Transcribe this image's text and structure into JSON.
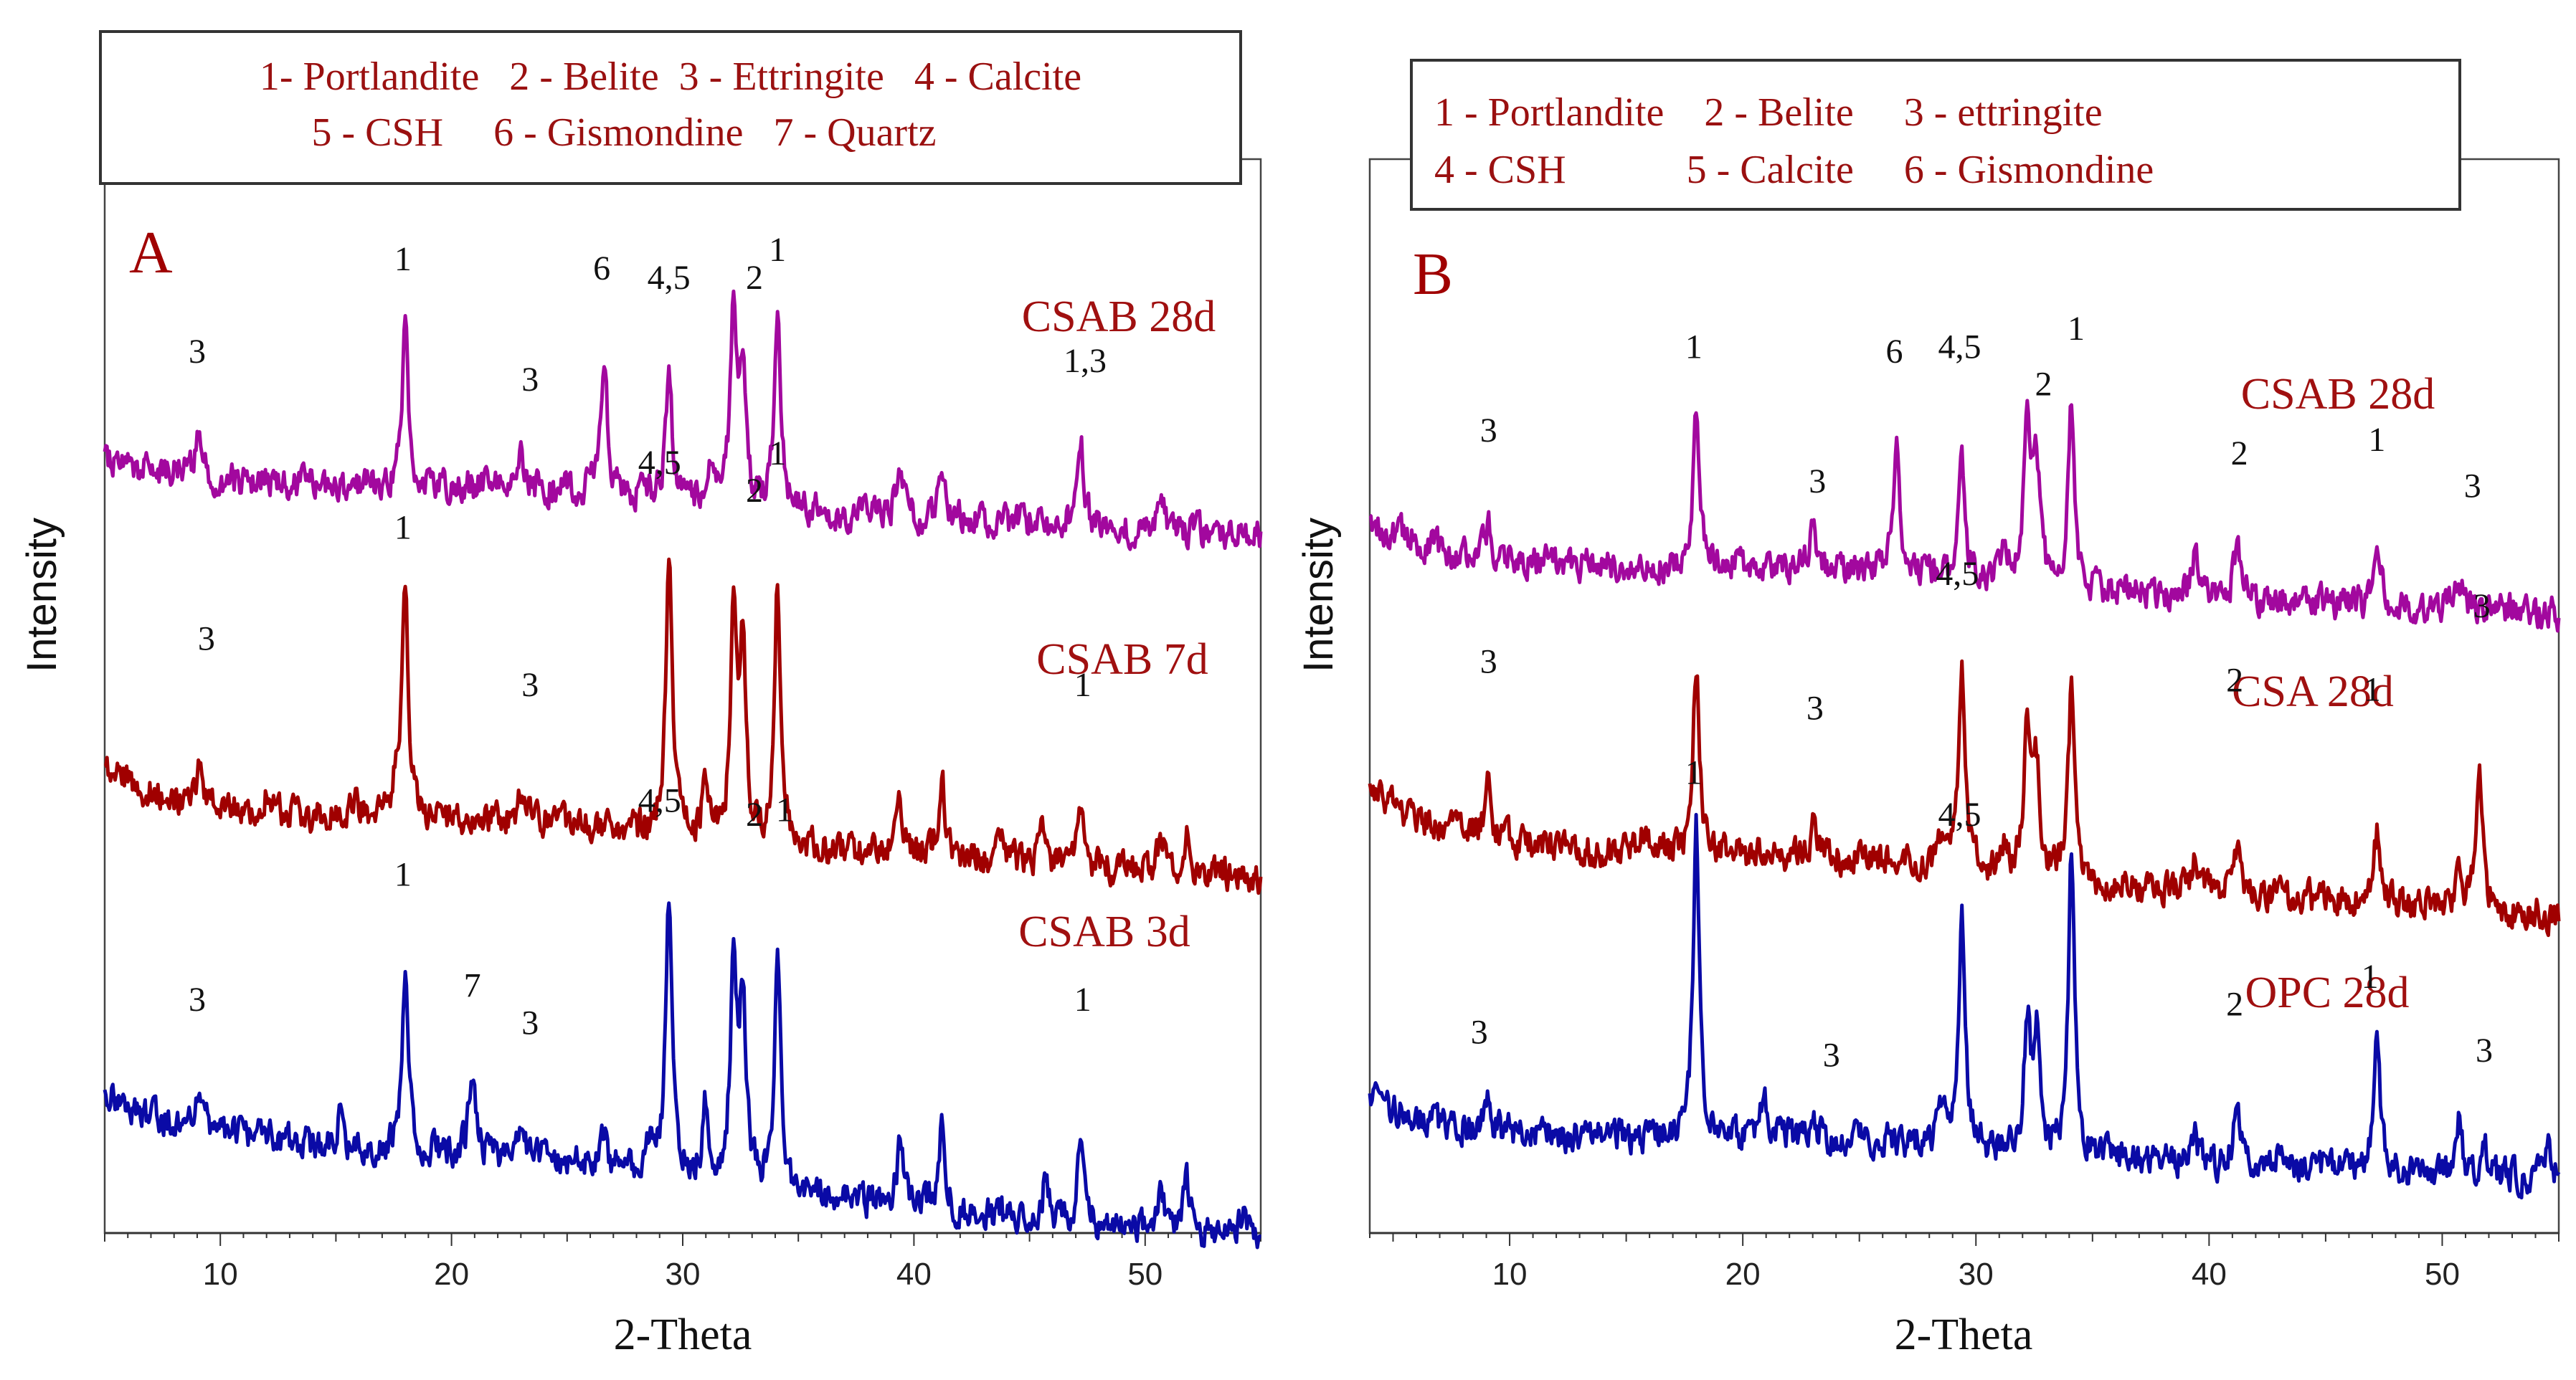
{
  "chart_data": [
    {
      "type": "line",
      "panel_label": "A",
      "title": "",
      "xlabel": "2-Theta",
      "ylabel": "Intensity",
      "xlim": [
        5,
        55
      ],
      "xticks": [
        10,
        20,
        30,
        40,
        50
      ],
      "xtick_labels": [
        "10",
        "20",
        "30",
        "40",
        "50"
      ],
      "grid": false,
      "legend_placement": "top",
      "legend_lines": [
        "1- Portlandite   2 - Belite  3 - Ettringite   4 - Calcite",
        "5 - CSH     6 - Gismondine   7 - Quartz"
      ],
      "series": [
        {
          "name": "CSAB 28d",
          "color": "#a2089e",
          "baseline": 8.15,
          "slope": 0.012,
          "start_bump": 0.25,
          "peaks": [
            [
              9.1,
              0.55
            ],
            [
              18.0,
              1.7
            ],
            [
              23.0,
              0.35
            ],
            [
              26.6,
              1.5
            ],
            [
              29.4,
              1.4
            ],
            [
              31.2,
              0.5
            ],
            [
              32.2,
              2.2
            ],
            [
              32.6,
              1.4
            ],
            [
              34.1,
              2.1
            ],
            [
              39.4,
              0.5
            ],
            [
              41.2,
              0.55
            ],
            [
              47.2,
              0.95
            ],
            [
              50.7,
              0.35
            ]
          ],
          "annotations": [
            {
              "text": "3",
              "x": 9.0,
              "y": 9.4
            },
            {
              "text": "1",
              "x": 17.9,
              "y": 10.4
            },
            {
              "text": "3",
              "x": 23.4,
              "y": 9.1
            },
            {
              "text": "6",
              "x": 26.5,
              "y": 10.3
            },
            {
              "text": "4,5",
              "x": 29.4,
              "y": 10.2
            },
            {
              "text": "2",
              "x": 33.1,
              "y": 10.2
            },
            {
              "text": "1",
              "x": 34.1,
              "y": 10.5
            },
            {
              "text": "1,3",
              "x": 47.4,
              "y": 9.3
            }
          ]
        },
        {
          "name": "CSAB 7d",
          "color": "#a00000",
          "baseline": 4.6,
          "slope": 0.015,
          "start_bump": 0.4,
          "peaks": [
            [
              9.1,
              0.5
            ],
            [
              12.0,
              0.25
            ],
            [
              15.8,
              0.25
            ],
            [
              17.6,
              0.4
            ],
            [
              18.0,
              2.5
            ],
            [
              23.0,
              0.35
            ],
            [
              29.4,
              3.0
            ],
            [
              31.0,
              0.6
            ],
            [
              32.2,
              2.3
            ],
            [
              32.6,
              2.1
            ],
            [
              34.1,
              2.9
            ],
            [
              39.4,
              0.6
            ],
            [
              41.2,
              0.9
            ],
            [
              43.8,
              0.3
            ],
            [
              45.6,
              0.35
            ],
            [
              47.2,
              0.55
            ],
            [
              50.7,
              0.4
            ],
            [
              51.8,
              0.35
            ]
          ],
          "annotations": [
            {
              "text": "3",
              "x": 9.4,
              "y": 6.3
            },
            {
              "text": "1",
              "x": 17.9,
              "y": 7.5
            },
            {
              "text": "3",
              "x": 23.4,
              "y": 5.8
            },
            {
              "text": "4,5",
              "x": 29.0,
              "y": 8.2
            },
            {
              "text": "2",
              "x": 33.1,
              "y": 7.9
            },
            {
              "text": "1",
              "x": 34.1,
              "y": 8.3
            },
            {
              "text": "1",
              "x": 47.3,
              "y": 5.8
            }
          ]
        },
        {
          "name": "CSAB 3d",
          "color": "#0a0aa6",
          "baseline": 1.15,
          "slope": 0.025,
          "start_bump": 0.35,
          "peaks": [
            [
              9.1,
              0.55
            ],
            [
              15.2,
              0.3
            ],
            [
              18.0,
              1.9
            ],
            [
              20.9,
              0.95
            ],
            [
              23.0,
              0.35
            ],
            [
              26.6,
              0.3
            ],
            [
              28.6,
              0.4
            ],
            [
              29.4,
              3.0
            ],
            [
              31.0,
              0.8
            ],
            [
              32.2,
              2.5
            ],
            [
              32.6,
              2.0
            ],
            [
              34.1,
              2.6
            ],
            [
              39.4,
              0.7
            ],
            [
              41.2,
              0.9
            ],
            [
              45.7,
              0.45
            ],
            [
              47.2,
              0.9
            ],
            [
              50.7,
              0.45
            ],
            [
              51.8,
              0.55
            ],
            [
              54.2,
              0.3
            ]
          ],
          "annotations": [
            {
              "text": "3",
              "x": 9.0,
              "y": 2.4
            },
            {
              "text": "1",
              "x": 17.9,
              "y": 3.75
            },
            {
              "text": "7",
              "x": 20.9,
              "y": 2.55
            },
            {
              "text": "3",
              "x": 23.4,
              "y": 2.15
            },
            {
              "text": "4,5",
              "x": 29.0,
              "y": 4.55
            },
            {
              "text": "2",
              "x": 33.1,
              "y": 4.4
            },
            {
              "text": "1",
              "x": 34.4,
              "y": 4.45
            },
            {
              "text": "1",
              "x": 47.3,
              "y": 2.4
            }
          ]
        }
      ]
    },
    {
      "type": "line",
      "panel_label": "B",
      "title": "",
      "xlabel": "2-Theta",
      "ylabel": "Intensity",
      "xlim": [
        4,
        55
      ],
      "xticks": [
        10,
        20,
        30,
        40,
        50
      ],
      "xtick_labels": [
        "10",
        "20",
        "30",
        "40",
        "50"
      ],
      "grid": false,
      "legend_placement": "top",
      "legend_lines": [
        "1 - Portlandite    2 - Belite     3 - ettringite",
        "4 - CSH            5 - Calcite     6 - Gismondine"
      ],
      "series": [
        {
          "name": "CSAB 28d",
          "color": "#a2089e",
          "baseline": 7.3,
          "slope": 0.012,
          "start_bump": 0.4,
          "peaks": [
            [
              9.1,
              0.35
            ],
            [
              18.0,
              1.55
            ],
            [
              23.0,
              0.35
            ],
            [
              26.6,
              1.55
            ],
            [
              29.4,
              1.3
            ],
            [
              31.2,
              0.4
            ],
            [
              32.2,
              2.0
            ],
            [
              32.6,
              1.3
            ],
            [
              34.1,
              2.0
            ],
            [
              39.4,
              0.5
            ],
            [
              41.2,
              0.55
            ],
            [
              47.2,
              0.8
            ],
            [
              50.7,
              0.4
            ]
          ],
          "annotations": [
            {
              "text": "3",
              "x": 9.1,
              "y": 8.55
            },
            {
              "text": "1",
              "x": 17.9,
              "y": 9.45
            },
            {
              "text": "6",
              "x": 26.5,
              "y": 9.4
            },
            {
              "text": "4,5",
              "x": 29.3,
              "y": 9.45
            },
            {
              "text": "2",
              "x": 32.9,
              "y": 9.05
            },
            {
              "text": "1",
              "x": 34.3,
              "y": 9.65
            },
            {
              "text": "3",
              "x": 23.2,
              "y": 8.0
            },
            {
              "text": "2",
              "x": 41.3,
              "y": 8.3
            },
            {
              "text": "1",
              "x": 47.2,
              "y": 8.45
            },
            {
              "text": "3",
              "x": 51.3,
              "y": 7.95
            }
          ]
        },
        {
          "name": "CSA 28d",
          "color": "#a00000",
          "baseline": 4.25,
          "slope": 0.016,
          "start_bump": 0.55,
          "peaks": [
            [
              9.1,
              0.6
            ],
            [
              15.8,
              0.3
            ],
            [
              18.0,
              2.0
            ],
            [
              23.0,
              0.3
            ],
            [
              28.6,
              0.4
            ],
            [
              29.4,
              2.2
            ],
            [
              31.2,
              0.35
            ],
            [
              32.2,
              1.8
            ],
            [
              32.6,
              1.1
            ],
            [
              34.1,
              2.1
            ],
            [
              39.4,
              0.45
            ],
            [
              41.2,
              0.5
            ],
            [
              47.2,
              0.75
            ],
            [
              50.7,
              0.45
            ],
            [
              51.6,
              1.5
            ]
          ],
          "annotations": [
            {
              "text": "3",
              "x": 9.1,
              "y": 6.05
            },
            {
              "text": "3",
              "x": 23.1,
              "y": 5.55
            },
            {
              "text": "4,5",
              "x": 29.2,
              "y": 7.0
            },
            {
              "text": "2",
              "x": 41.1,
              "y": 5.85
            },
            {
              "text": "1",
              "x": 47.0,
              "y": 5.75
            },
            {
              "text": "3",
              "x": 51.7,
              "y": 6.65
            }
          ]
        },
        {
          "name": "OPC 28d",
          "color": "#0a0aa6",
          "baseline": 1.1,
          "slope": 0.01,
          "start_bump": 0.35,
          "peaks": [
            [
              9.1,
              0.3
            ],
            [
              18.0,
              3.4
            ],
            [
              20.9,
              0.45
            ],
            [
              23.0,
              0.25
            ],
            [
              28.6,
              0.5
            ],
            [
              29.4,
              2.5
            ],
            [
              32.2,
              1.4
            ],
            [
              32.6,
              1.2
            ],
            [
              34.1,
              3.3
            ],
            [
              39.4,
              0.3
            ],
            [
              41.2,
              0.6
            ],
            [
              43.1,
              0.3
            ],
            [
              47.2,
              1.35
            ],
            [
              50.7,
              0.6
            ],
            [
              51.8,
              0.4
            ],
            [
              54.6,
              0.3
            ]
          ],
          "annotations": [
            {
              "text": "1",
              "x": 17.9,
              "y": 4.85
            },
            {
              "text": "4,5",
              "x": 29.3,
              "y": 4.4
            },
            {
              "text": "3",
              "x": 8.7,
              "y": 2.05
            },
            {
              "text": "3",
              "x": 23.8,
              "y": 1.8
            },
            {
              "text": "2",
              "x": 41.1,
              "y": 2.35
            },
            {
              "text": "1",
              "x": 46.9,
              "y": 2.65
            },
            {
              "text": "3",
              "x": 51.8,
              "y": 1.85
            }
          ]
        }
      ]
    }
  ]
}
